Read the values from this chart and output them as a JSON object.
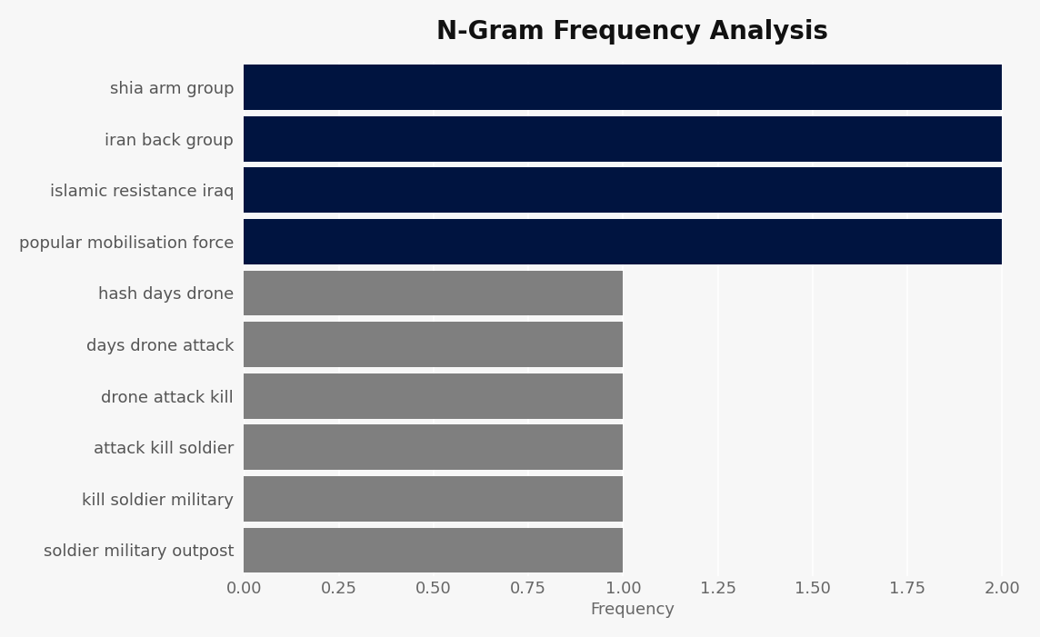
{
  "title": "N-Gram Frequency Analysis",
  "categories": [
    "soldier military outpost",
    "kill soldier military",
    "attack kill soldier",
    "drone attack kill",
    "days drone attack",
    "hash days drone",
    "popular mobilisation force",
    "islamic resistance iraq",
    "iran back group",
    "shia arm group"
  ],
  "values": [
    1,
    1,
    1,
    1,
    1,
    1,
    2,
    2,
    2,
    2
  ],
  "bar_colors": [
    "#7f7f7f",
    "#7f7f7f",
    "#7f7f7f",
    "#7f7f7f",
    "#7f7f7f",
    "#7f7f7f",
    "#001440",
    "#001440",
    "#001440",
    "#001440"
  ],
  "xlabel": "Frequency",
  "xlim": [
    0,
    2.05
  ],
  "xticks": [
    0.0,
    0.25,
    0.5,
    0.75,
    1.0,
    1.25,
    1.5,
    1.75,
    2.0
  ],
  "background_color": "#f7f7f7",
  "plot_background_color": "#f7f7f7",
  "title_fontsize": 20,
  "label_fontsize": 13,
  "tick_fontsize": 13,
  "bar_height": 0.88
}
